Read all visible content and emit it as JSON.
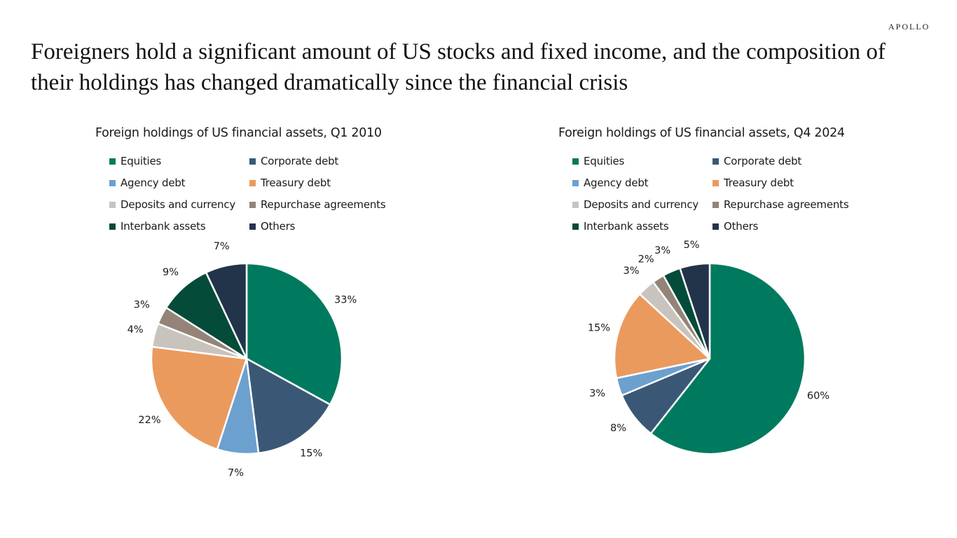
{
  "brand": "APOLLO",
  "headline": "Foreigners hold a significant amount of US stocks and fixed income, and the composition of their holdings has changed dramatically since the financial crisis",
  "colors": {
    "Equities": "#007A5E",
    "Corporate debt": "#3A5876",
    "Agency debt": "#6CA0CF",
    "Treasury debt": "#EB9A5E",
    "Deposits and currency": "#C9C3BE",
    "Repurchase agreements": "#938477",
    "Interbank assets": "#044B3A",
    "Others": "#22344A"
  },
  "chart_data": [
    {
      "type": "pie",
      "title": "Foreign holdings of US financial assets, Q1 2010",
      "legend": [
        "Equities",
        "Corporate debt",
        "Agency debt",
        "Treasury debt",
        "Deposits and currency",
        "Repurchase agreements",
        "Interbank assets",
        "Others"
      ],
      "legend_position": "top",
      "categories": [
        "Equities",
        "Corporate debt",
        "Agency debt",
        "Treasury debt",
        "Deposits and currency",
        "Repurchase agreements",
        "Interbank assets",
        "Others"
      ],
      "values": [
        33,
        15,
        7,
        22,
        4,
        3,
        9,
        7
      ],
      "labels": [
        "33%",
        "15%",
        "7%",
        "22%",
        "4%",
        "3%",
        "9%",
        "7%"
      ],
      "start": "12 o'clock",
      "direction": "clockwise"
    },
    {
      "type": "pie",
      "title": "Foreign holdings of US financial assets, Q4 2024",
      "legend": [
        "Equities",
        "Corporate debt",
        "Agency debt",
        "Treasury debt",
        "Deposits and currency",
        "Repurchase agreements",
        "Interbank assets",
        "Others"
      ],
      "legend_position": "top",
      "categories": [
        "Equities",
        "Corporate debt",
        "Agency debt",
        "Treasury debt",
        "Deposits and currency",
        "Repurchase agreements",
        "Interbank assets",
        "Others"
      ],
      "values": [
        60,
        8,
        3,
        15,
        3,
        2,
        3,
        5
      ],
      "labels": [
        "60%",
        "8%",
        "3%",
        "15%",
        "3%",
        "2%",
        "3%",
        "5%"
      ],
      "start": "12 o'clock",
      "direction": "clockwise"
    }
  ]
}
